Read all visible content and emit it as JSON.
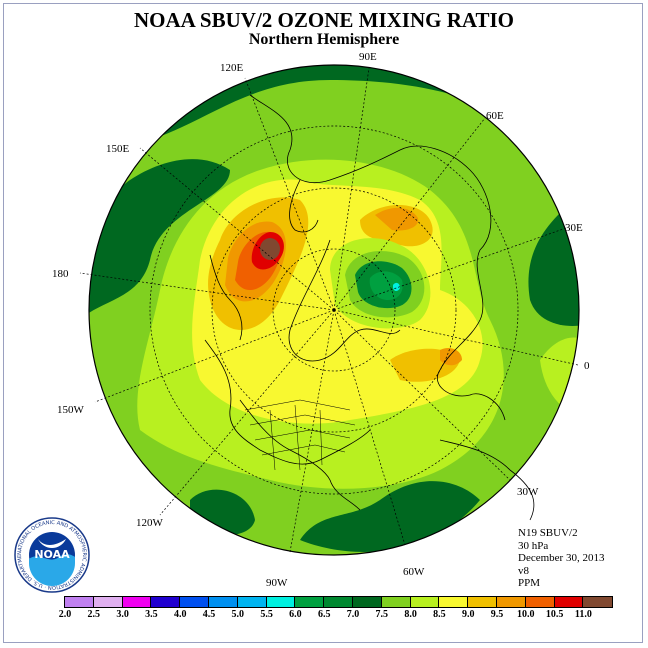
{
  "title": "NOAA SBUV/2 OZONE MIXING RATIO",
  "subtitle": "Northern Hemisphere",
  "longitude_labels": {
    "lon_90e": "90E",
    "lon_60e": "60E",
    "lon_30e": "30E",
    "lon_0": "0",
    "lon_30w": "30W",
    "lon_60w": "60W",
    "lon_90w": "90W",
    "lon_120w": "120W",
    "lon_150w": "150W",
    "lon_180": "180",
    "lon_150e": "150E",
    "lon_120e": "120E"
  },
  "info": {
    "instrument": "N19 SBUV/2",
    "level": "30 hPa",
    "date": "December 30, 2013",
    "version": "v8",
    "units": "PPM"
  },
  "logo": {
    "text": "NOAA",
    "ring_text": "NATIONAL OCEANIC AND ATMOSPHERIC ADMINISTRATION · U.S. DEPARTMENT OF COMMERCE"
  },
  "colorbar": {
    "ticks": [
      "2.0",
      "2.5",
      "3.0",
      "3.5",
      "4.0",
      "4.5",
      "5.0",
      "5.5",
      "6.0",
      "6.5",
      "7.0",
      "7.5",
      "8.0",
      "8.5",
      "9.0",
      "9.5",
      "10.0",
      "10.5",
      "11.0"
    ],
    "colors": [
      "#c080f0",
      "#e0b0f0",
      "#f000f0",
      "#2000d0",
      "#0050f0",
      "#0090f0",
      "#00b4f0",
      "#00f0e0",
      "#00a040",
      "#008830",
      "#006820",
      "#80d020",
      "#b8f020",
      "#f8f830",
      "#f0c000",
      "#f09800",
      "#f06000",
      "#e00000",
      "#804830"
    ]
  }
}
